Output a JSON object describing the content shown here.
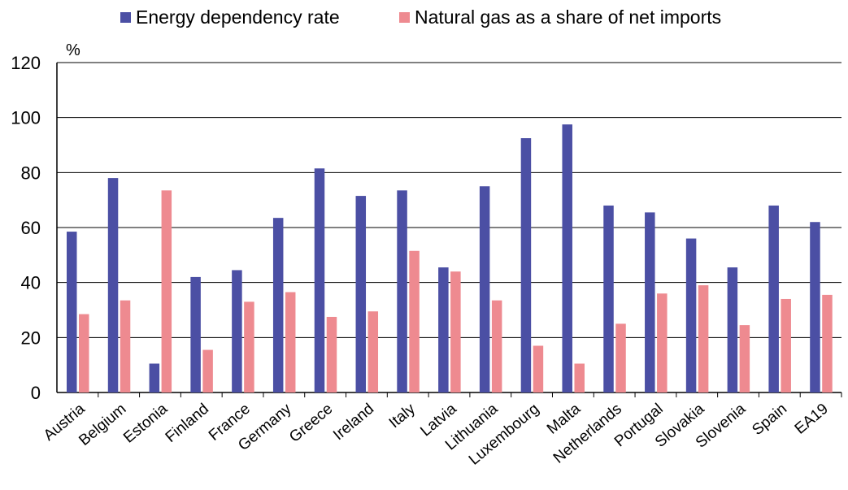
{
  "chart_data": {
    "type": "bar",
    "title": "",
    "xlabel": "",
    "ylabel": "%",
    "ylim": [
      0,
      120
    ],
    "yticks": [
      0,
      20,
      40,
      60,
      80,
      100,
      120
    ],
    "grid": true,
    "legend_position": "top",
    "categories": [
      "Austria",
      "Belgium",
      "Estonia",
      "Finland",
      "France",
      "Germany",
      "Greece",
      "Ireland",
      "Italy",
      "Latvia",
      "Lithuania",
      "Luxembourg",
      "Malta",
      "Netherlands",
      "Portugal",
      "Slovakia",
      "Slovenia",
      "Spain",
      "EA19"
    ],
    "series": [
      {
        "name": "Energy dependency rate",
        "color": "#4b4fa4",
        "values": [
          58.5,
          78,
          10.5,
          42,
          44.5,
          63.5,
          81.5,
          71.5,
          73.5,
          45.5,
          75,
          92.5,
          97.5,
          68,
          65.5,
          56,
          45.5,
          68,
          62
        ]
      },
      {
        "name": "Natural gas as a share of net imports",
        "color": "#ee8a90",
        "values": [
          28.5,
          33.5,
          73.5,
          15.5,
          33,
          36.5,
          27.5,
          29.5,
          51.5,
          44,
          33.5,
          17,
          10.5,
          25,
          36,
          39,
          24.5,
          34,
          35.5
        ]
      }
    ]
  }
}
